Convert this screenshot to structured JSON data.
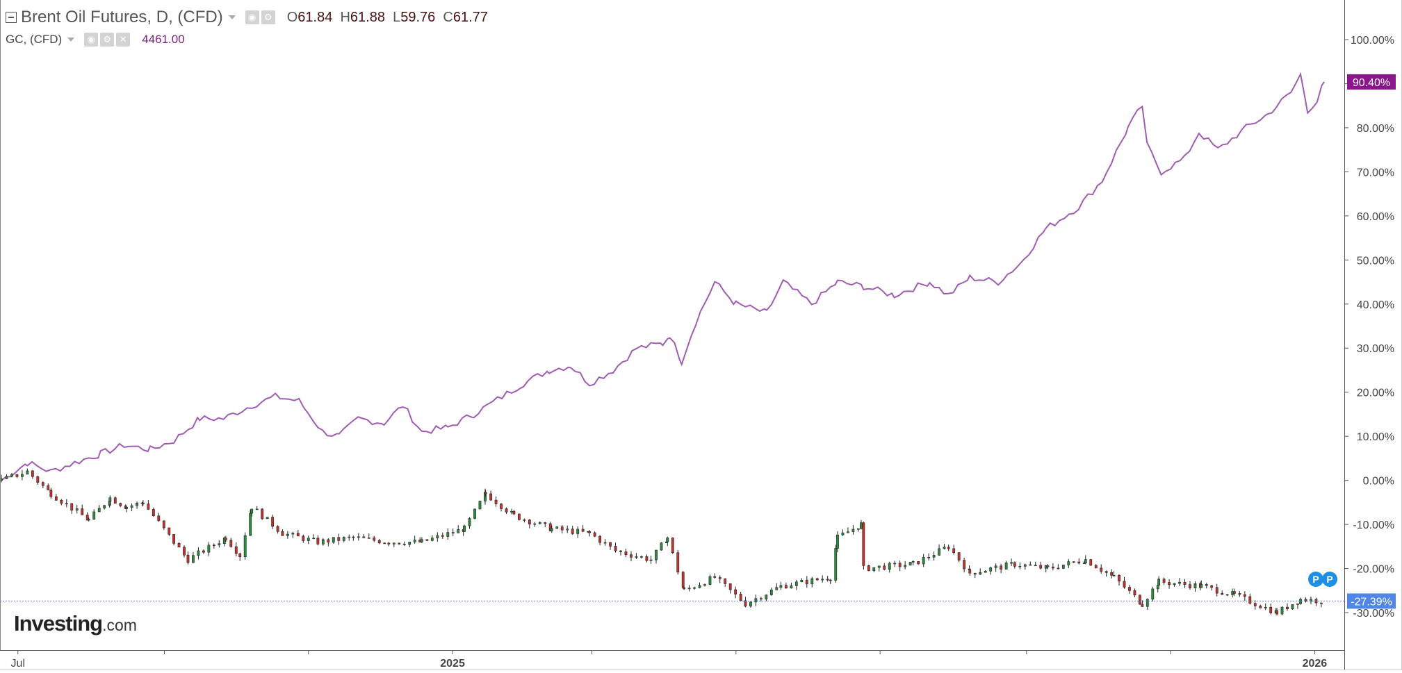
{
  "legend": {
    "main_title": "Brent Oil Futures, D, (CFD)",
    "open_label": "O",
    "open": "61.84",
    "high_label": "H",
    "high": "61.88",
    "low_label": "L",
    "low": "59.76",
    "close_label": "C",
    "close": "61.77",
    "compare_title": "GC, (CFD)",
    "compare_value": "4461.00"
  },
  "logo": {
    "brand": "Investing",
    "domain": ".com"
  },
  "colors": {
    "gold_line": "#a05cb3",
    "gold_tag": "#8b168b",
    "up_candle": "#2e8b3e",
    "down_candle": "#c4322d",
    "last_price_line": "#5b7fd6",
    "last_price_tag": "#4f86e8"
  },
  "chart_data": [
    {
      "type": "line",
      "series_name": "GC, (CFD)",
      "y_unit": "% change",
      "points": [
        [
          "2024-06-24",
          0
        ],
        [
          "2024-07-05",
          4
        ],
        [
          "2024-07-15",
          2
        ],
        [
          "2024-07-25",
          4
        ],
        [
          "2024-08-05",
          6
        ],
        [
          "2024-08-15",
          8
        ],
        [
          "2024-08-26",
          7
        ],
        [
          "2024-09-05",
          9
        ],
        [
          "2024-09-16",
          14
        ],
        [
          "2024-09-26",
          14
        ],
        [
          "2024-10-08",
          17
        ],
        [
          "2024-10-18",
          19
        ],
        [
          "2024-10-28",
          18
        ],
        [
          "2024-11-07",
          11
        ],
        [
          "2024-11-14",
          10
        ],
        [
          "2024-11-22",
          14
        ],
        [
          "2024-12-03",
          13
        ],
        [
          "2024-12-11",
          17
        ],
        [
          "2024-12-19",
          11
        ],
        [
          "2024-12-30",
          12
        ],
        [
          "2025-01-10",
          15
        ],
        [
          "2025-01-22",
          19
        ],
        [
          "2025-01-31",
          22
        ],
        [
          "2025-02-11",
          25
        ],
        [
          "2025-02-20",
          26
        ],
        [
          "2025-02-28",
          22
        ],
        [
          "2025-03-10",
          25
        ],
        [
          "2025-03-20",
          30
        ],
        [
          "2025-03-31",
          31
        ],
        [
          "2025-04-03",
          33
        ],
        [
          "2025-04-08",
          27
        ],
        [
          "2025-04-14",
          36
        ],
        [
          "2025-04-22",
          45
        ],
        [
          "2025-05-01",
          40
        ],
        [
          "2025-05-14",
          38
        ],
        [
          "2025-05-21",
          45
        ],
        [
          "2025-06-02",
          40
        ],
        [
          "2025-06-13",
          45
        ],
        [
          "2025-06-24",
          44
        ],
        [
          "2025-07-07",
          42
        ],
        [
          "2025-07-22",
          45
        ],
        [
          "2025-07-30",
          42
        ],
        [
          "2025-08-08",
          46
        ],
        [
          "2025-08-20",
          45
        ],
        [
          "2025-08-29",
          49
        ],
        [
          "2025-09-09",
          57
        ],
        [
          "2025-09-23",
          62
        ],
        [
          "2025-10-03",
          68
        ],
        [
          "2025-10-14",
          80
        ],
        [
          "2025-10-20",
          85
        ],
        [
          "2025-10-22",
          76
        ],
        [
          "2025-10-28",
          70
        ],
        [
          "2025-11-07",
          73
        ],
        [
          "2025-11-13",
          79
        ],
        [
          "2025-11-21",
          75
        ],
        [
          "2025-12-03",
          80
        ],
        [
          "2025-12-12",
          83
        ],
        [
          "2025-12-22",
          88
        ],
        [
          "2025-12-26",
          92
        ],
        [
          "2025-12-29",
          84
        ],
        [
          "2026-01-02",
          86
        ],
        [
          "2026-01-05",
          90.4
        ]
      ],
      "last_value_label": "90.40%"
    },
    {
      "type": "candlestick",
      "series_name": "Brent Oil Futures, D, (CFD)",
      "y_unit": "% change",
      "anchors": [
        [
          "2024-06-24",
          0
        ],
        [
          "2024-07-05",
          2
        ],
        [
          "2024-07-15",
          -3
        ],
        [
          "2024-07-31",
          -9
        ],
        [
          "2024-08-09",
          -4
        ],
        [
          "2024-08-16",
          -6
        ],
        [
          "2024-08-23",
          -5
        ],
        [
          "2024-09-05",
          -14
        ],
        [
          "2024-09-11",
          -18
        ],
        [
          "2024-09-27",
          -13
        ],
        [
          "2024-10-03",
          -17
        ],
        [
          "2024-10-08",
          -6
        ],
        [
          "2024-10-21",
          -12
        ],
        [
          "2024-11-05",
          -14
        ],
        [
          "2024-11-20",
          -13
        ],
        [
          "2024-12-05",
          -14
        ],
        [
          "2024-12-19",
          -14
        ],
        [
          "2025-01-06",
          -11
        ],
        [
          "2025-01-15",
          -3
        ],
        [
          "2025-01-27",
          -8
        ],
        [
          "2025-02-12",
          -11
        ],
        [
          "2025-02-28",
          -12
        ],
        [
          "2025-03-11",
          -16
        ],
        [
          "2025-03-26",
          -18
        ],
        [
          "2025-04-02",
          -13
        ],
        [
          "2025-04-09",
          -25
        ],
        [
          "2025-04-22",
          -22
        ],
        [
          "2025-05-05",
          -28
        ],
        [
          "2025-05-20",
          -24
        ],
        [
          "2025-06-10",
          -22
        ],
        [
          "2025-06-13",
          -13
        ],
        [
          "2025-06-23",
          -10
        ],
        [
          "2025-06-24",
          -20
        ],
        [
          "2025-07-15",
          -19
        ],
        [
          "2025-07-30",
          -15
        ],
        [
          "2025-08-08",
          -21
        ],
        [
          "2025-08-27",
          -19
        ],
        [
          "2025-09-10",
          -20
        ],
        [
          "2025-09-26",
          -18
        ],
        [
          "2025-10-08",
          -22
        ],
        [
          "2025-10-20",
          -28
        ],
        [
          "2025-10-27",
          -23
        ],
        [
          "2025-11-14",
          -24
        ],
        [
          "2025-11-28",
          -26
        ],
        [
          "2025-12-16",
          -30
        ],
        [
          "2025-12-26",
          -27
        ],
        [
          "2026-01-05",
          -27.39
        ]
      ],
      "last_value_label": "-27.39%"
    }
  ],
  "axes": {
    "y_ticks": [
      {
        "v": 100,
        "label": "100.00%"
      },
      {
        "v": 90,
        "label": "90.00%"
      },
      {
        "v": 80,
        "label": "80.00%"
      },
      {
        "v": 70,
        "label": "70.00%"
      },
      {
        "v": 60,
        "label": "60.00%"
      },
      {
        "v": 50,
        "label": "50.00%"
      },
      {
        "v": 40,
        "label": "40.00%"
      },
      {
        "v": 30,
        "label": "30.00%"
      },
      {
        "v": 20,
        "label": "20.00%"
      },
      {
        "v": 10,
        "label": "10.00%"
      },
      {
        "v": 0,
        "label": "0.00%"
      },
      {
        "v": -10,
        "label": "-10.00%"
      },
      {
        "v": -20,
        "label": "-20.00%"
      },
      {
        "v": -30,
        "label": "-30.00%"
      }
    ],
    "x_ticks": [
      {
        "date": "2024-07-01",
        "label": "Jul"
      },
      {
        "date": "2024-09-01",
        "label": ""
      },
      {
        "date": "2024-11-01",
        "label": ""
      },
      {
        "date": "2025-01-01",
        "label": "2025"
      },
      {
        "date": "2025-03-01",
        "label": ""
      },
      {
        "date": "2025-05-01",
        "label": ""
      },
      {
        "date": "2025-07-01",
        "label": ""
      },
      {
        "date": "2025-09-01",
        "label": ""
      },
      {
        "date": "2025-11-01",
        "label": ""
      },
      {
        "date": "2026-01-01",
        "label": "2026"
      }
    ],
    "y_range": [
      -37,
      110
    ],
    "x_range": [
      "2024-06-24",
      "2026-01-19"
    ]
  },
  "markers": {
    "pivot_label": "P"
  }
}
